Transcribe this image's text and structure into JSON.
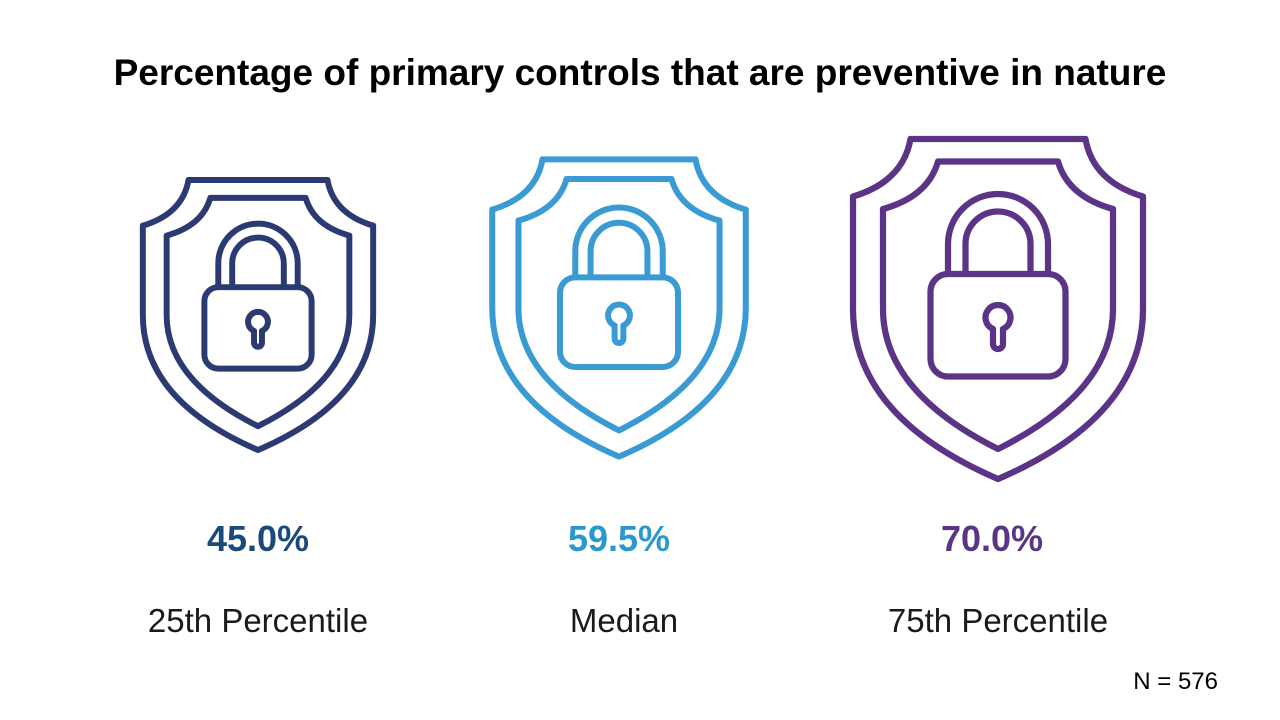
{
  "title": "Percentage of primary controls that are preventive in nature",
  "stats": [
    {
      "value": "45.0%",
      "label": "25th Percentile",
      "color": "#2b3a73",
      "value_color": "#1b4a7a",
      "icon": "shield-lock-icon"
    },
    {
      "value": "59.5%",
      "label": "Median",
      "color": "#3a9bd4",
      "value_color": "#2a98cf",
      "icon": "shield-lock-icon"
    },
    {
      "value": "70.0%",
      "label": "75th Percentile",
      "color": "#5b3487",
      "value_color": "#5b3487",
      "icon": "shield-lock-icon"
    }
  ],
  "footnote": "N = 576"
}
